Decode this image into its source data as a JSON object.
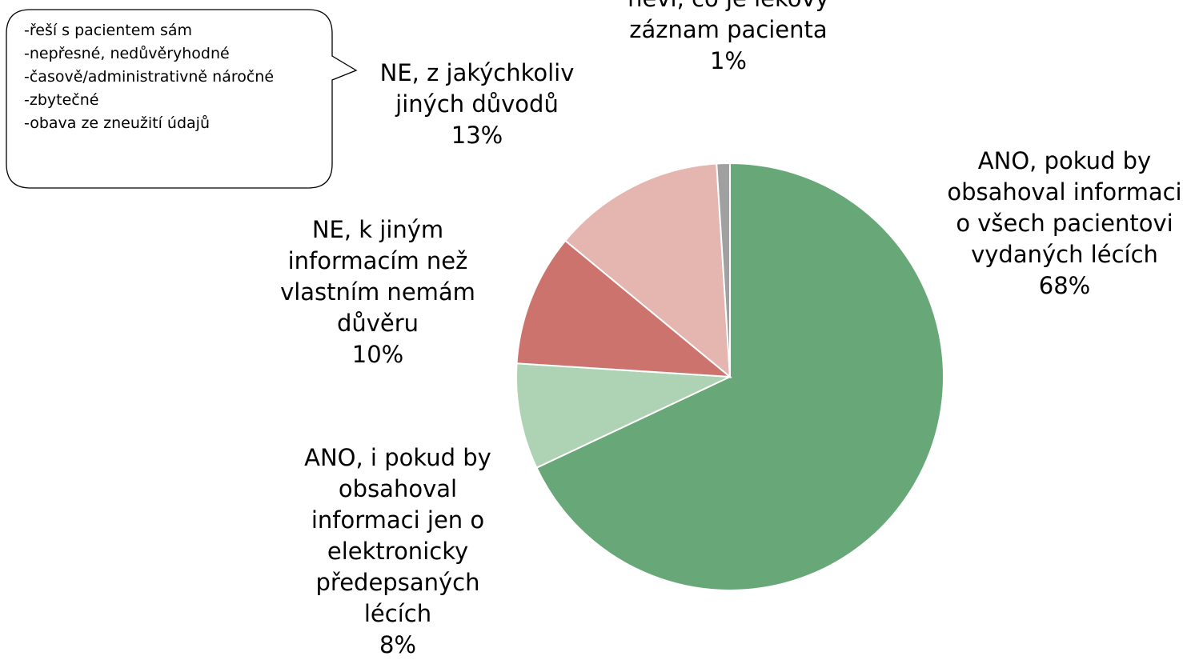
{
  "chart_data": {
    "type": "pie",
    "categories": [
      "ANO, pokud by obsahoval informaci o všech pacientovi vydaných lécích",
      "ANO, i pokud by obsahoval informaci jen o elektronicky předepsaných lécích",
      "NE, k jiným informacím než vlastním nemám důvěru",
      "NE, z jakýchkoliv jiných důvodů",
      "neví, co je lékový záznam pacienta"
    ],
    "values": [
      68,
      8,
      10,
      13,
      1
    ],
    "value_labels": [
      "68%",
      "8%",
      "10%",
      "13%",
      "1%"
    ],
    "colors": [
      "#68a878",
      "#aed2b4",
      "#cc736e",
      "#e5b5b0",
      "#a0a0a0"
    ],
    "annotation": [
      "-řeší s pacientem sám",
      "-nepřesné, nedůvěryhodné",
      "-časově/administrativně náročné",
      "-zbytečné",
      "-obava ze zneužití údajů"
    ]
  }
}
